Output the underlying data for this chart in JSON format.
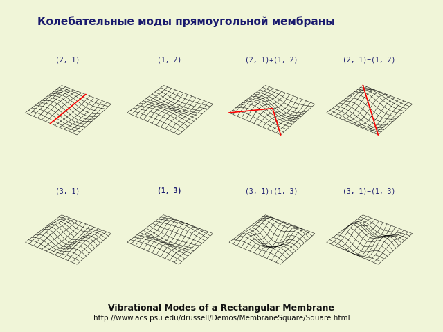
{
  "title_russian": "Колебательные моды прямоугольной мембраны",
  "title_english": "Vibrational Modes of a Rectangular Membrane",
  "url": "http://www.acs.psu.edu/drussell/Demos/MembraneSquare/Square.html",
  "background_outer": "#f0f5d8",
  "background_panel": "#f8f8f0",
  "background_strip": "#d8eef8",
  "label_color": "#1a1a6e",
  "row1_labels": [
    "(2, 1)",
    "(1, 2)",
    "(2, 1)+(1, 2)",
    "(2, 1)−(1, 2)"
  ],
  "row2_labels": [
    "(3, 1)",
    "(1, 3)",
    "(3, 1)+(1, 3)",
    "(3, 1)−(1, 3)"
  ],
  "row2_bold": [
    false,
    true,
    false,
    false
  ],
  "elev": 35,
  "azim": -55,
  "n_grid": 13,
  "amplitude": 0.4,
  "figsize": [
    6.4,
    4.8
  ],
  "dpi": 100
}
